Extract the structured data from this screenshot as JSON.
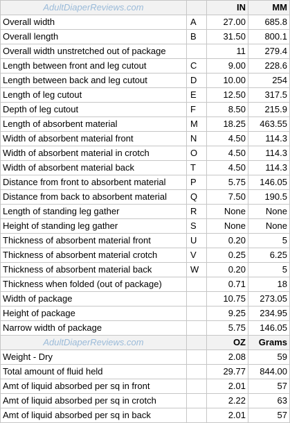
{
  "header": {
    "brand": "AdultDiaperReviews.com",
    "unit_in": "IN",
    "unit_mm": "MM"
  },
  "dimensions": [
    {
      "label": "Overall width",
      "code": "A",
      "in": "27.00",
      "mm": "685.8"
    },
    {
      "label": "Overall length",
      "code": "B",
      "in": "31.50",
      "mm": "800.1"
    },
    {
      "label": "Overall width unstretched out of package",
      "code": "",
      "in": "11",
      "mm": "279.4"
    },
    {
      "label": "Length between front and leg cutout",
      "code": "C",
      "in": "9.00",
      "mm": "228.6"
    },
    {
      "label": "Length between back and leg cutout",
      "code": "D",
      "in": "10.00",
      "mm": "254"
    },
    {
      "label": "Length of leg cutout",
      "code": "E",
      "in": "12.50",
      "mm": "317.5"
    },
    {
      "label": "Depth of leg cutout",
      "code": "F",
      "in": "8.50",
      "mm": "215.9"
    },
    {
      "label": "Length of absorbent material",
      "code": "M",
      "in": "18.25",
      "mm": "463.55"
    },
    {
      "label": "Width of absorbent material front",
      "code": "N",
      "in": "4.50",
      "mm": "114.3"
    },
    {
      "label": "Width of absorbent material in crotch",
      "code": "O",
      "in": "4.50",
      "mm": "114.3"
    },
    {
      "label": "Width of absorbent material back",
      "code": "T",
      "in": "4.50",
      "mm": "114.3"
    },
    {
      "label": "Distance from front to absorbent material",
      "code": "P",
      "in": "5.75",
      "mm": "146.05"
    },
    {
      "label": "Distance from back to absorbent material",
      "code": "Q",
      "in": "7.50",
      "mm": "190.5"
    },
    {
      "label": "Length of standing leg gather",
      "code": "R",
      "in": "None",
      "mm": "None"
    },
    {
      "label": "Height of standing leg gather",
      "code": "S",
      "in": "None",
      "mm": "None"
    },
    {
      "label": "Thickness of absorbent material front",
      "code": "U",
      "in": "0.20",
      "mm": "5"
    },
    {
      "label": "Thickness of absorbent material crotch",
      "code": "V",
      "in": "0.25",
      "mm": "6.25"
    },
    {
      "label": "Thickness of absorbent material back",
      "code": "W",
      "in": "0.20",
      "mm": "5"
    },
    {
      "label": "Thickness when folded (out of package)",
      "code": "",
      "in": "0.71",
      "mm": "18"
    },
    {
      "label": "Width of package",
      "code": "",
      "in": "10.75",
      "mm": "273.05"
    },
    {
      "label": "Height of package",
      "code": "",
      "in": "9.25",
      "mm": "234.95"
    },
    {
      "label": "Narrow width of package",
      "code": "",
      "in": "5.75",
      "mm": "146.05"
    }
  ],
  "header2": {
    "brand": "AdultDiaperReviews.com",
    "unit_oz": "OZ",
    "unit_grams": "Grams"
  },
  "weights": [
    {
      "label": "Weight - Dry",
      "code": "",
      "oz": "2.08",
      "grams": "59"
    },
    {
      "label": "Total amount of fluid held",
      "code": "",
      "oz": "29.77",
      "grams": "844.00"
    },
    {
      "label": "Amt of liquid absorbed per sq in front",
      "code": "",
      "oz": "2.01",
      "grams": "57"
    },
    {
      "label": "Amt of liquid absorbed per sq in crotch",
      "code": "",
      "oz": "2.22",
      "grams": "63"
    },
    {
      "label": "Amt of liquid absorbed per sq in back",
      "code": "",
      "oz": "2.01",
      "grams": "57"
    }
  ]
}
